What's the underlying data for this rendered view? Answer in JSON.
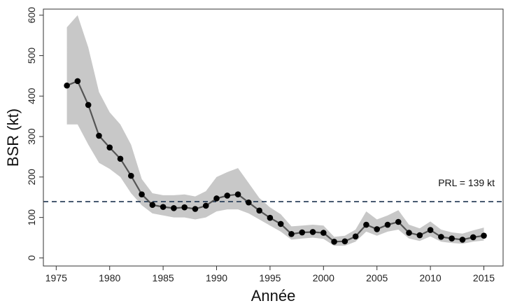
{
  "chart_data": {
    "type": "line",
    "xlabel": "Année",
    "ylabel": "BSR (kt)",
    "xlim": [
      1974.5,
      1976.0
    ],
    "xticks": [
      1975,
      1980,
      1985,
      1990,
      1995,
      2000,
      2005,
      2010,
      2015
    ],
    "ylim": [
      -20,
      615
    ],
    "yticks": [
      0,
      100,
      200,
      300,
      400,
      500,
      600
    ],
    "grid": false,
    "legend": "none",
    "series": [
      {
        "x": [
          1976,
          1977,
          1978,
          1979,
          1980,
          1981,
          1982,
          1983,
          1984,
          1985,
          1986,
          1987,
          1988,
          1989,
          1990,
          1991,
          1992,
          1993,
          1994,
          1995,
          1996,
          1997,
          1998,
          1999,
          2000,
          2001,
          2002,
          2003,
          2004,
          2005,
          2006,
          2007,
          2008,
          2009,
          2010,
          2011,
          2012,
          2013,
          2014,
          2015
        ],
        "values": [
          426,
          437,
          378,
          302,
          273,
          245,
          203,
          157,
          131,
          126,
          123,
          125,
          121,
          129,
          147,
          154,
          157,
          137,
          117,
          99,
          84,
          59,
          63,
          64,
          62,
          40,
          41,
          53,
          82,
          71,
          82,
          89,
          62,
          56,
          69,
          52,
          48,
          45,
          51,
          55
        ]
      }
    ],
    "confidence_band": {
      "lower": [
        330,
        330,
        280,
        235,
        220,
        200,
        160,
        130,
        110,
        105,
        100,
        100,
        95,
        100,
        115,
        120,
        120,
        110,
        95,
        80,
        65,
        45,
        48,
        50,
        47,
        30,
        30,
        40,
        65,
        55,
        65,
        70,
        48,
        42,
        53,
        40,
        37,
        35,
        40,
        43
      ],
      "upper": [
        570,
        600,
        520,
        410,
        360,
        330,
        280,
        195,
        160,
        155,
        155,
        157,
        152,
        165,
        200,
        212,
        222,
        185,
        148,
        125,
        108,
        78,
        80,
        82,
        80,
        52,
        55,
        70,
        115,
        95,
        105,
        118,
        82,
        73,
        90,
        70,
        63,
        60,
        68,
        75
      ]
    },
    "reference_line": {
      "value": 139,
      "label": "PRL = 139 kt"
    },
    "colors": {
      "line": "#555555",
      "marker": "#000000",
      "band": "#c8c8c8",
      "reference": "#1f3550"
    }
  }
}
